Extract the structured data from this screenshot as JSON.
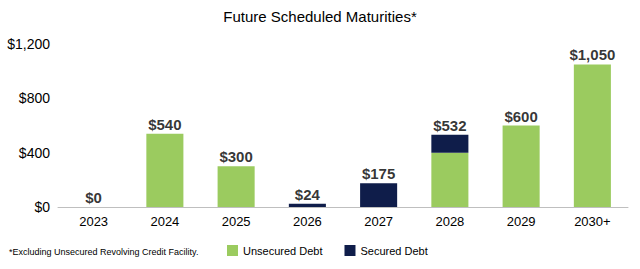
{
  "chart_data": {
    "type": "bar",
    "title": "Future Scheduled Maturities*",
    "note": "*Excluding Unsecured Revolving Credit Facility.",
    "categories": [
      "2023",
      "2024",
      "2025",
      "2026",
      "2027",
      "2028",
      "2029",
      "2030+"
    ],
    "series": [
      {
        "name": "Unsecured Debt",
        "color": "#9bcb5f",
        "values": [
          0,
          540,
          300,
          0,
          0,
          400,
          600,
          1050
        ]
      },
      {
        "name": "Secured Debt",
        "color": "#0f1d4a",
        "values": [
          0,
          0,
          0,
          24,
          175,
          132,
          0,
          0
        ]
      }
    ],
    "totals": [
      0,
      540,
      300,
      24,
      175,
      532,
      600,
      1050
    ],
    "total_labels": [
      "$0",
      "$540",
      "$300",
      "$24",
      "$175",
      "$532",
      "$600",
      "$1,050"
    ],
    "ylim": [
      0,
      1200
    ],
    "yticks": [
      {
        "value": 0,
        "label": "$0"
      },
      {
        "value": 400,
        "label": "$400"
      },
      {
        "value": 800,
        "label": "$800"
      },
      {
        "value": 1200,
        "label": "$1,200"
      }
    ],
    "stacked": true,
    "grid": false,
    "legend": "bottom"
  }
}
